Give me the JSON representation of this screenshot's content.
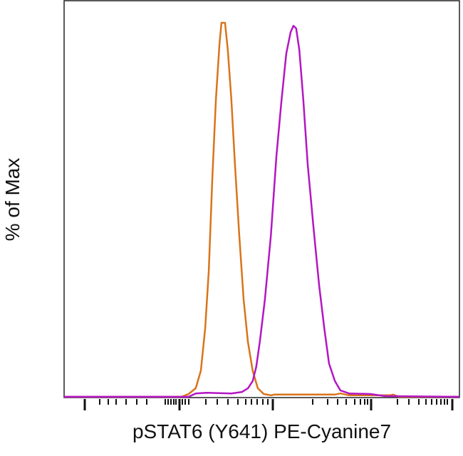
{
  "chart_data": {
    "type": "line",
    "title": "",
    "xlabel": "pSTAT6 (Y641) PE-Cyanine7",
    "ylabel": "% of Max",
    "xlim": [
      0,
      1000
    ],
    "ylim": [
      0,
      100
    ],
    "x_scale": "biexponential",
    "x_tick_labels": [],
    "grid": false,
    "legend": "none",
    "series": [
      {
        "color": "#d9741a",
        "points": [
          [
            0,
            0.2
          ],
          [
            297,
            0.2
          ],
          [
            315,
            0.95
          ],
          [
            333,
            2.5
          ],
          [
            346,
            7.2
          ],
          [
            357,
            18.6
          ],
          [
            366,
            33.8
          ],
          [
            375,
            58.6
          ],
          [
            384,
            79.5
          ],
          [
            393,
            94.3
          ],
          [
            398,
            100
          ],
          [
            407,
            100
          ],
          [
            414,
            92.8
          ],
          [
            423,
            79.5
          ],
          [
            432,
            62.4
          ],
          [
            443,
            43.3
          ],
          [
            454,
            26.2
          ],
          [
            465,
            14.8
          ],
          [
            477,
            7.2
          ],
          [
            490,
            2.5
          ],
          [
            505,
            0.95
          ],
          [
            523,
            0.6
          ],
          [
            532,
            0.8
          ],
          [
            685,
            0.8
          ],
          [
            699,
            1.1
          ],
          [
            721,
            0.6
          ],
          [
            825,
            0.6
          ],
          [
            832,
            0.8
          ],
          [
            847,
            0.2
          ],
          [
            1000,
            0.2
          ]
        ]
      },
      {
        "color": "#b316c4",
        "points": [
          [
            0,
            0.2
          ],
          [
            315,
            0.2
          ],
          [
            333,
            1.1
          ],
          [
            360,
            1.3
          ],
          [
            423,
            1.1
          ],
          [
            450,
            1.5
          ],
          [
            465,
            2.5
          ],
          [
            477,
            4.4
          ],
          [
            486,
            8.2
          ],
          [
            495,
            14.8
          ],
          [
            508,
            26.2
          ],
          [
            523,
            43.3
          ],
          [
            537,
            64.3
          ],
          [
            550,
            79.5
          ],
          [
            562,
            91.8
          ],
          [
            573,
            97.5
          ],
          [
            580,
            99.2
          ],
          [
            587,
            98.5
          ],
          [
            595,
            92.8
          ],
          [
            605,
            79.5
          ],
          [
            616,
            62.4
          ],
          [
            631,
            45.2
          ],
          [
            645,
            30.0
          ],
          [
            658,
            18.6
          ],
          [
            670,
            9.1
          ],
          [
            685,
            4.4
          ],
          [
            699,
            1.9
          ],
          [
            721,
            1.1
          ],
          [
            775,
            0.95
          ],
          [
            811,
            0.4
          ],
          [
            1000,
            0.2
          ]
        ]
      }
    ]
  }
}
